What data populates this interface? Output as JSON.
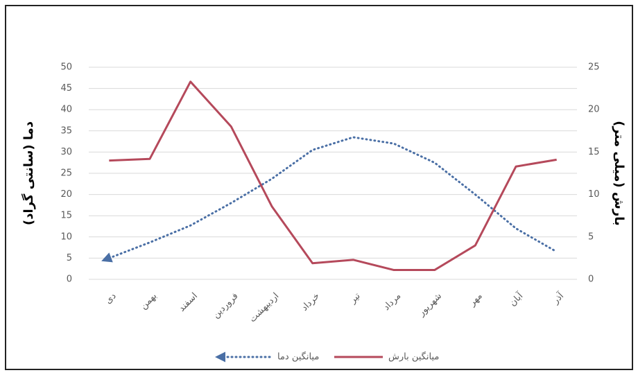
{
  "chart_data": {
    "type": "line",
    "categories": [
      "دی",
      "بهمن",
      "اسفند",
      "فروردین",
      "اردیبهشت",
      "خرداد",
      "تیر",
      "مرداد",
      "شهریور",
      "مهر",
      "آبان",
      "آذر"
    ],
    "ylabel": "دما (سانتی گراد)",
    "y2label": "بارش (میلی متر)",
    "ylim": [
      0,
      50
    ],
    "yticks": [
      0,
      5,
      10,
      15,
      20,
      25,
      30,
      35,
      40,
      45,
      50
    ],
    "y2lim": [
      0,
      25
    ],
    "y2ticks": [
      0,
      5,
      10,
      15,
      20,
      25
    ],
    "grid": true,
    "series": [
      {
        "name": "میانگین دما",
        "color": "#4a6fa5",
        "style": "dotted",
        "values": [
          5,
          8.7,
          12.7,
          18,
          23.7,
          30.5,
          33.5,
          32,
          27.5,
          20,
          12,
          6.5
        ]
      },
      {
        "name": "میانگین بارش",
        "color": "#b5495b",
        "style": "solid",
        "axis": "y2",
        "values": [
          14,
          14.2,
          23.3,
          18,
          8.6,
          1.9,
          2.3,
          1.1,
          1.1,
          4,
          13.3,
          14.1
        ]
      }
    ]
  }
}
